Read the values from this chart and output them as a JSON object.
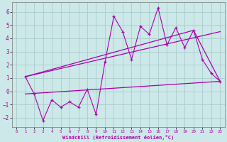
{
  "xlabel": "Windchill (Refroidissement éolien,°C)",
  "bg_color": "#cce8e8",
  "grid_color": "#aacccc",
  "line_color": "#aa00aa",
  "xlim": [
    -0.5,
    23.5
  ],
  "ylim": [
    -2.7,
    6.7
  ],
  "xticks": [
    0,
    1,
    2,
    3,
    4,
    5,
    6,
    7,
    8,
    9,
    10,
    11,
    12,
    13,
    14,
    15,
    16,
    17,
    18,
    19,
    20,
    21,
    22,
    23
  ],
  "yticks": [
    -2,
    -1,
    0,
    1,
    2,
    3,
    4,
    5,
    6
  ],
  "main_x": [
    1,
    2,
    3,
    4,
    5,
    6,
    7,
    8,
    9,
    10,
    11,
    12,
    13,
    14,
    15,
    16,
    17,
    18,
    19,
    20,
    21,
    22,
    23
  ],
  "main_y": [
    1.1,
    -0.2,
    -2.2,
    -0.65,
    -1.2,
    -0.8,
    -1.2,
    0.15,
    -1.75,
    2.2,
    5.65,
    4.5,
    2.4,
    4.9,
    4.3,
    6.3,
    3.5,
    4.8,
    3.3,
    4.6,
    2.4,
    1.35,
    0.75
  ],
  "trend1_x": [
    1,
    20,
    23
  ],
  "trend1_y": [
    1.1,
    4.6,
    0.75
  ],
  "trend2_x": [
    1,
    23
  ],
  "trend2_y": [
    1.1,
    4.5
  ],
  "trend3_x": [
    1,
    23
  ],
  "trend3_y": [
    -0.2,
    0.75
  ]
}
